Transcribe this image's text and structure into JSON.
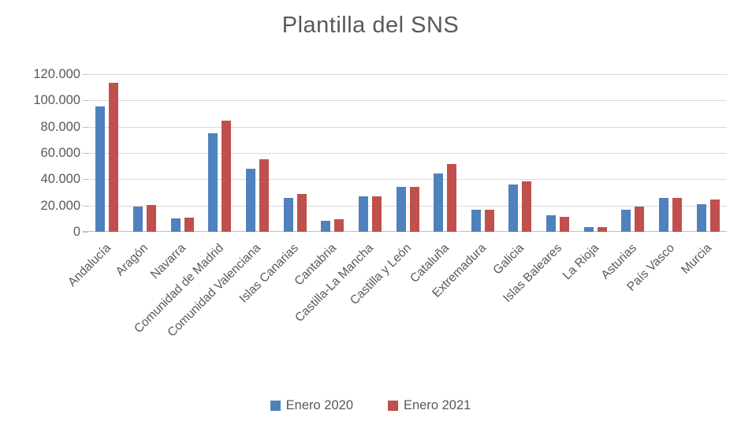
{
  "chart_data": {
    "type": "bar",
    "title": "Plantilla del SNS",
    "categories": [
      "Andalucía",
      "Aragón",
      "Navarra",
      "Comunidad de Madrid",
      "Comunidad Valenciana",
      "Islas Canarias",
      "Cantabria",
      "Castilla-La Mancha",
      "Castilla y León",
      "Cataluña",
      "Extremadura",
      "Galicia",
      "Islas Baleares",
      "La Rioja",
      "Asturias",
      "País Vasco",
      "Murcia"
    ],
    "series": [
      {
        "name": "Enero 2020",
        "color": "#4F81BD",
        "values": [
          95500,
          19000,
          10000,
          75000,
          48000,
          26000,
          8500,
          27000,
          34000,
          44500,
          16500,
          36000,
          12500,
          3500,
          16500,
          25500,
          21000
        ]
      },
      {
        "name": "Enero 2021",
        "color": "#C0504D",
        "values": [
          113500,
          20500,
          10500,
          84500,
          55000,
          28500,
          9500,
          27000,
          34500,
          51500,
          16500,
          38500,
          11500,
          3700,
          19000,
          26000,
          24500
        ]
      }
    ],
    "ylim": [
      0,
      120000
    ],
    "ytick_labels": [
      "120.000",
      "100.000",
      "80.000",
      "60.000",
      "40.000",
      "20.000",
      "0"
    ],
    "xlabel": "",
    "ylabel": "",
    "grid": true,
    "legend_position": "bottom",
    "style": {
      "text_color": "#595959",
      "grid_color": "#D9D9D9",
      "axis_color": "#BFBFBF",
      "background": "#FFFFFF"
    }
  }
}
